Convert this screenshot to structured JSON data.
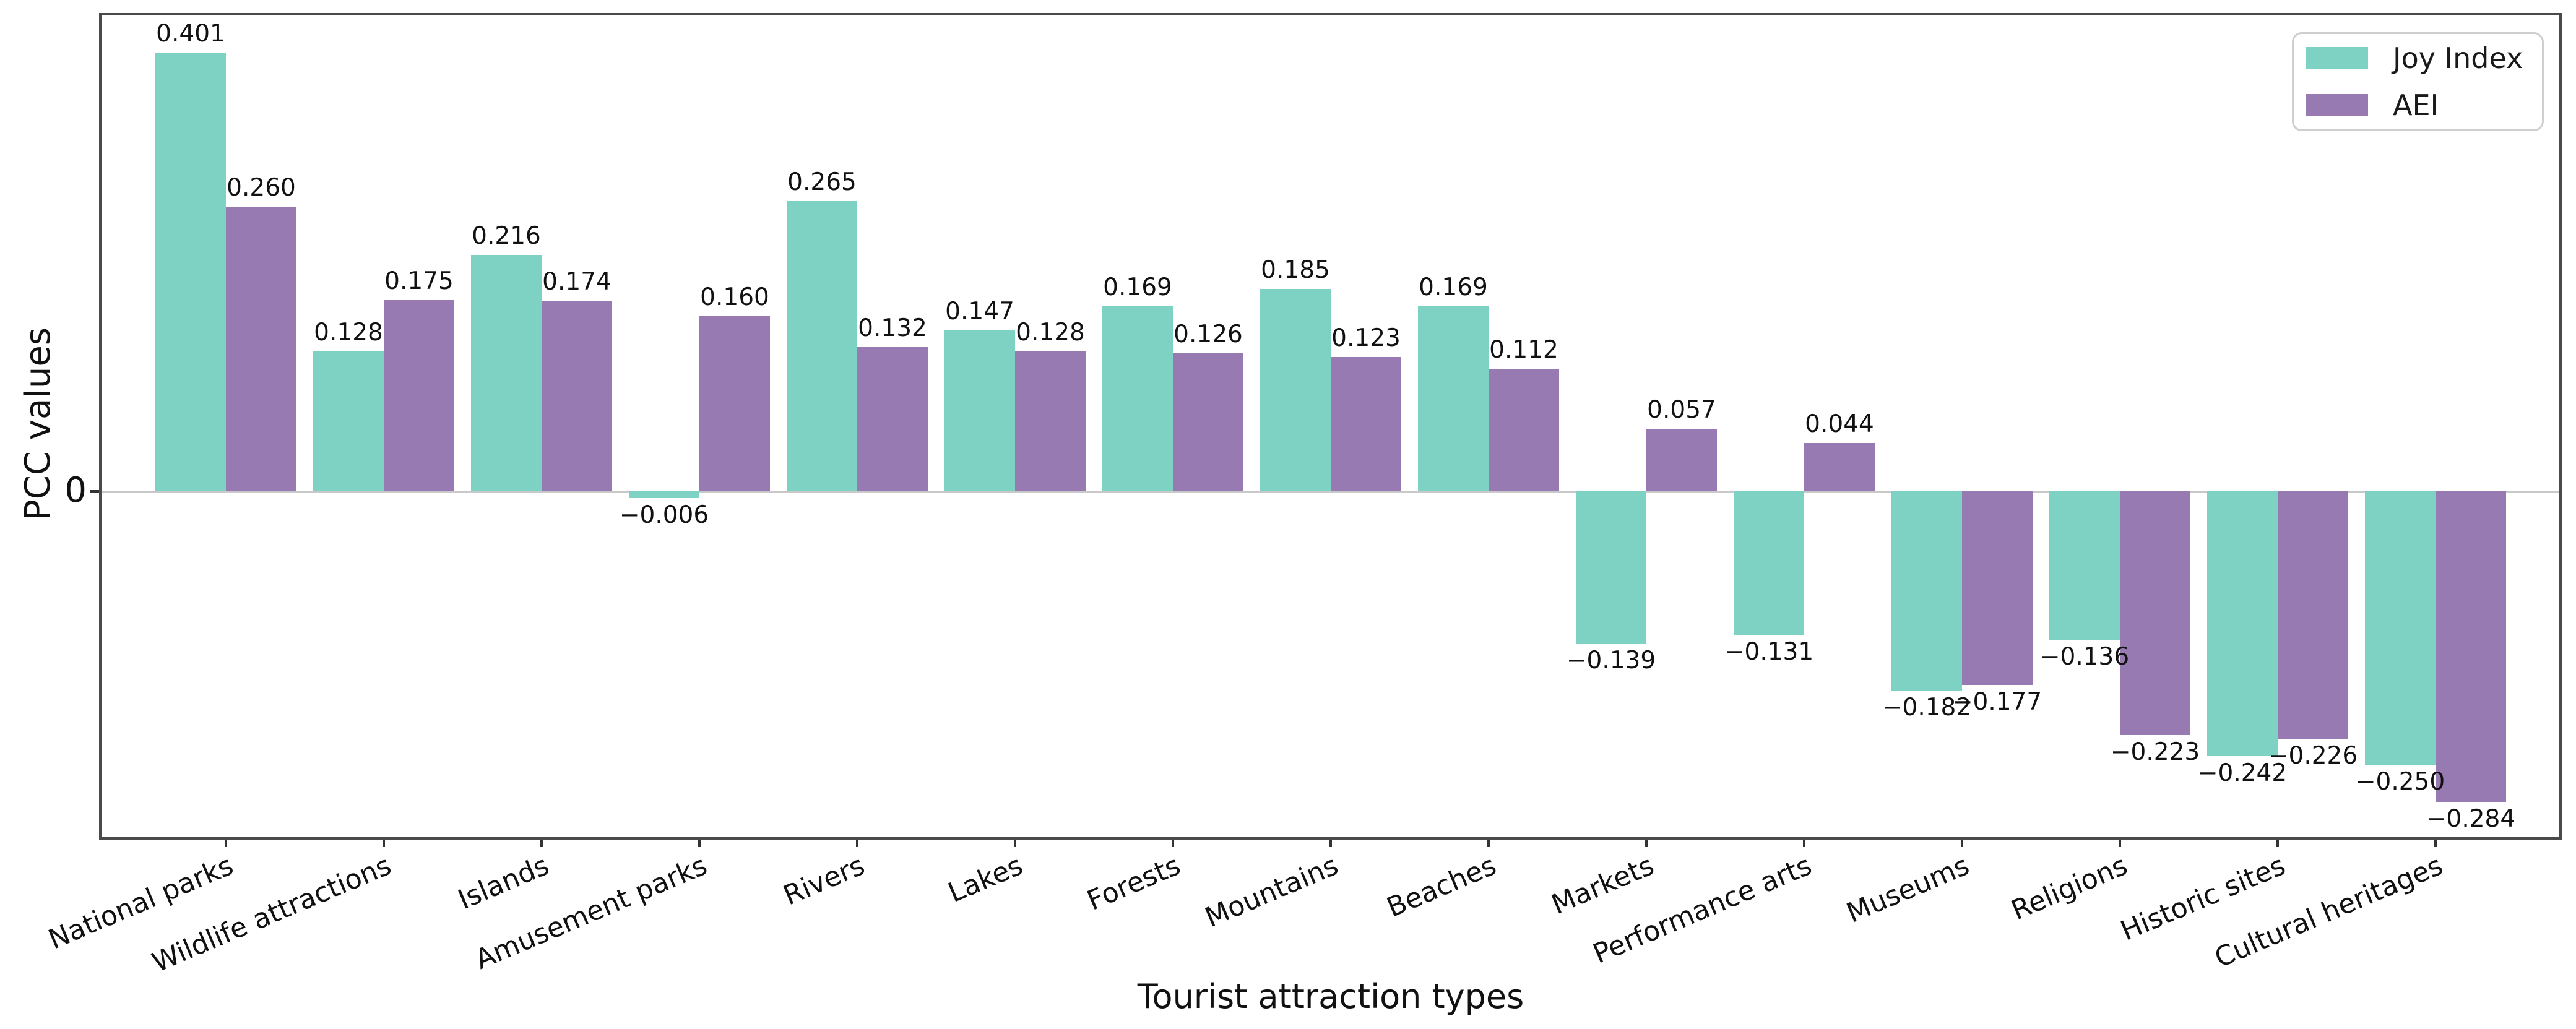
{
  "chart_data": {
    "type": "bar",
    "title": "",
    "xlabel": "Tourist attraction types",
    "ylabel": "PCC values",
    "categories": [
      "National parks",
      "Wildlife attractions",
      "Islands",
      "Amusement parks",
      "Rivers",
      "Lakes",
      "Forests",
      "Mountains",
      "Beaches",
      "Markets",
      "Performance arts",
      "Museums",
      "Religions",
      "Historic sites",
      "Cultural heritages"
    ],
    "series": [
      {
        "name": "Joy Index",
        "color": "#7ed2c4",
        "values": [
          0.401,
          0.128,
          0.216,
          -0.006,
          0.265,
          0.147,
          0.169,
          0.185,
          0.169,
          -0.139,
          -0.131,
          -0.182,
          -0.136,
          -0.242,
          -0.25
        ]
      },
      {
        "name": "AEI",
        "color": "#977ab2",
        "values": [
          0.26,
          0.175,
          0.174,
          0.16,
          0.132,
          0.128,
          0.126,
          0.123,
          0.112,
          0.057,
          0.044,
          -0.177,
          -0.223,
          -0.226,
          -0.284
        ]
      }
    ],
    "bar_value_labels": true,
    "value_label_decimals": 3,
    "y_tick_labels": [
      "0"
    ],
    "ylim": [
      -0.3173,
      0.436
    ],
    "x_tick_rotation_deg": 23,
    "grid": false,
    "legend_position": "upper right"
  }
}
